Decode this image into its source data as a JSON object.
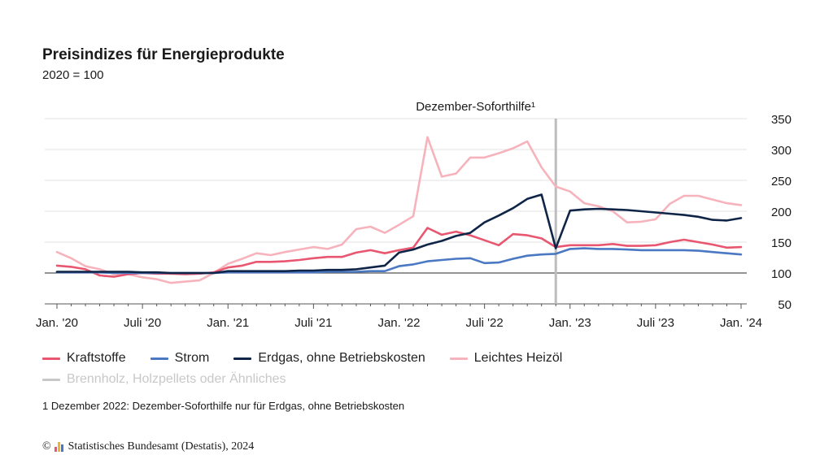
{
  "header": {
    "title": "Preisindizes für Energieprodukte",
    "subtitle": "2020 = 100"
  },
  "annotation": "Dezember-Soforthilfe¹",
  "legend": {
    "items": [
      {
        "label": "Kraftstoffe",
        "color": "#e8566f"
      },
      {
        "label": "Strom",
        "color": "#4a78c2"
      },
      {
        "label": "Erdgas, ohne Betriebskosten",
        "color": "#0f2547"
      },
      {
        "label": "Leichtes Heizöl",
        "color": "#f7b3bc"
      },
      {
        "label": "Brennholz, Holzpellets oder Ähnliches",
        "color": "#c8c8c8"
      }
    ]
  },
  "footnote": "1 Dezember 2022: Dezember-Soforthilfe nur für Erdgas, ohne Betriebskosten",
  "source": {
    "copyright": "©",
    "text": "Statistisches Bundesamt (Destatis), 2024",
    "logo_colors": [
      "#e8566f",
      "#f2b233",
      "#4a78c2"
    ]
  },
  "chart_data": {
    "type": "line",
    "x_unit": "month",
    "x_start": "2020-01",
    "x_end": "2024-01",
    "categories": [
      "Jan. '20",
      "Feb. '20",
      "März '20",
      "Apr. '20",
      "Mai '20",
      "Juni '20",
      "Juli '20",
      "Aug. '20",
      "Sep. '20",
      "Okt. '20",
      "Nov. '20",
      "Dez. '20",
      "Jan. '21",
      "Feb. '21",
      "März '21",
      "Apr. '21",
      "Mai '21",
      "Juni '21",
      "Juli '21",
      "Aug. '21",
      "Sep. '21",
      "Okt. '21",
      "Nov. '21",
      "Dez. '21",
      "Jan. '22",
      "Feb. '22",
      "März '22",
      "Apr. '22",
      "Mai '22",
      "Juni '22",
      "Juli '22",
      "Aug. '22",
      "Sep. '22",
      "Okt. '22",
      "Nov. '22",
      "Dez. '22",
      "Jan. '23",
      "Feb. '23",
      "März '23",
      "Apr. '23",
      "Mai '23",
      "Juni '23",
      "Juli '23",
      "Aug. '23",
      "Sep. '23",
      "Okt. '23",
      "Nov. '23",
      "Dez. '23",
      "Jan. '24"
    ],
    "x_tick_labels": [
      "Jan. '20",
      "Juli '20",
      "Jan. '21",
      "Juli '21",
      "Jan. '22",
      "Juli '22",
      "Jan. '23",
      "Juli '23",
      "Jan. '24"
    ],
    "x_tick_months": [
      0,
      6,
      12,
      18,
      24,
      30,
      36,
      42,
      48
    ],
    "ylim": [
      50,
      350
    ],
    "y_ticks": [
      50,
      100,
      150,
      200,
      250,
      300,
      350
    ],
    "baseline": 100,
    "grid": true,
    "legend_position": "bottom",
    "annotation_month": 35,
    "series": [
      {
        "name": "Leichtes Heizöl",
        "color": "#f7b3bc",
        "values": [
          134,
          124,
          111,
          106,
          98,
          98,
          93,
          90,
          84,
          86,
          88,
          100,
          115,
          123,
          132,
          129,
          134,
          138,
          142,
          139,
          146,
          171,
          175,
          165,
          178,
          192,
          320,
          256,
          261,
          287,
          287,
          294,
          302,
          313,
          271,
          240,
          232,
          213,
          208,
          200,
          182,
          183,
          187,
          212,
          225,
          225,
          219,
          213,
          210
        ]
      },
      {
        "name": "Kraftstoffe",
        "color": "#e8566f",
        "values": [
          112,
          110,
          106,
          96,
          94,
          98,
          100,
          99,
          99,
          98,
          99,
          101,
          109,
          112,
          118,
          118,
          119,
          121,
          124,
          126,
          126,
          133,
          137,
          132,
          137,
          141,
          173,
          162,
          167,
          161,
          153,
          145,
          163,
          161,
          156,
          142,
          145,
          145,
          145,
          147,
          144,
          144,
          145,
          150,
          154,
          150,
          146,
          141,
          142
        ]
      },
      {
        "name": "Strom",
        "color": "#4a78c2",
        "values": [
          101,
          101,
          101,
          101,
          100,
          100,
          100,
          100,
          100,
          100,
          100,
          100,
          101,
          101,
          101,
          101,
          101,
          101,
          101,
          102,
          102,
          102,
          103,
          103,
          111,
          114,
          119,
          121,
          123,
          124,
          116,
          117,
          123,
          128,
          130,
          131,
          139,
          140,
          139,
          139,
          138,
          137,
          137,
          137,
          137,
          136,
          134,
          132,
          130
        ]
      },
      {
        "name": "Erdgas, ohne Betriebskosten",
        "color": "#0f2547",
        "values": [
          102,
          102,
          102,
          102,
          102,
          102,
          101,
          101,
          100,
          100,
          100,
          100,
          103,
          103,
          103,
          103,
          103,
          104,
          104,
          105,
          105,
          106,
          109,
          112,
          133,
          138,
          146,
          152,
          160,
          165,
          182,
          193,
          205,
          220,
          227,
          140,
          201,
          203,
          204,
          203,
          202,
          200,
          198,
          196,
          194,
          191,
          186,
          185,
          189
        ]
      }
    ]
  }
}
